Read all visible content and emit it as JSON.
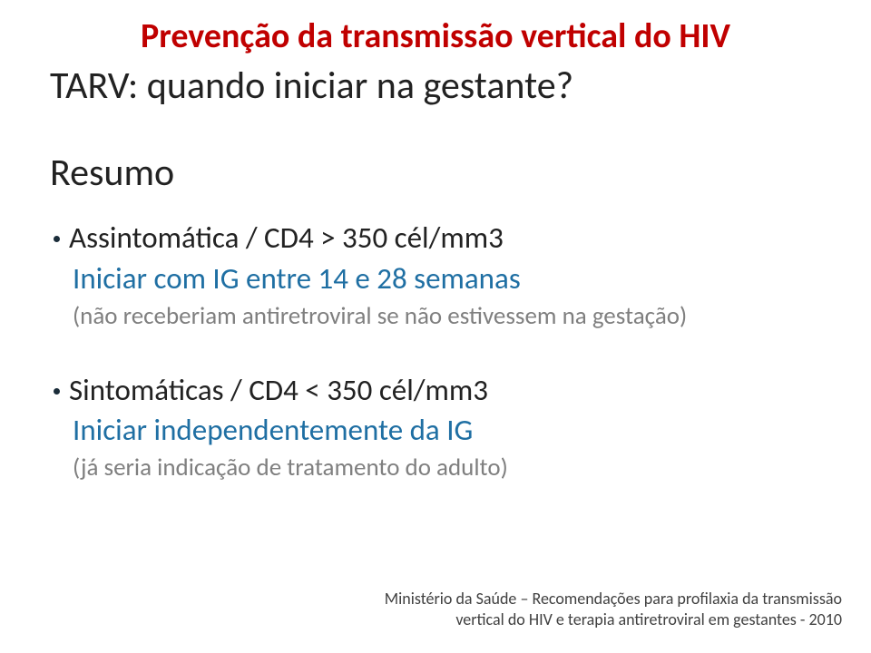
{
  "colors": {
    "title": "#c00000",
    "body": "#222222",
    "accent_blue": "#1f6fa3",
    "note_gray": "#7f7f7f",
    "footer": "#404040",
    "bullet_dot": "#1b2d3a",
    "background": "#ffffff"
  },
  "fonts": {
    "title_size": 38,
    "subtitle_size": 42,
    "section_size": 42,
    "bullet_size": 33,
    "subline_size": 33,
    "note_size": 27,
    "footer_size": 18
  },
  "title": "Prevenção da transmissão vertical do HIV",
  "subtitle": "TARV: quando iniciar na gestante?",
  "section_label": "Resumo",
  "bullets": [
    {
      "text": "Assintomática / CD4 > 350 cél/mm3",
      "subline": "Iniciar com IG entre 14 e 28 semanas",
      "note": "(não receberiam antiretroviral se não estivessem na gestação)"
    },
    {
      "text": "Sintomáticas / CD4 < 350 cél/mm3",
      "subline": "Iniciar independentemente da IG",
      "note": "(já seria indicação de tratamento do adulto)"
    }
  ],
  "footer": {
    "line1": "Ministério da Saúde – Recomendações para profilaxia da transmissão",
    "line2": "vertical do HIV e terapia antiretroviral em gestantes - 2010"
  }
}
